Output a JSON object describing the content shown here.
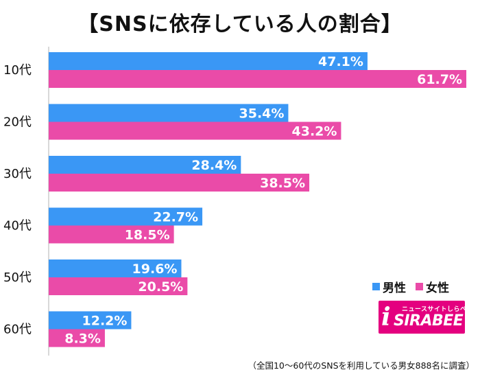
{
  "title": "【SNSに依存している人の割合】",
  "legend": [
    {
      "label": "男性",
      "color": "#3a97f5"
    },
    {
      "label": "女性",
      "color": "#ea4ba8"
    }
  ],
  "logo": {
    "tagline": "ニュースサイトしらべぇ",
    "mark": "i",
    "name": "SIRABEE"
  },
  "note": "（全国10〜60代のSNSを利用している男女888名に調査）",
  "chart_data": {
    "type": "bar",
    "orientation": "horizontal",
    "title": "【SNSに依存している人の割合】",
    "categories": [
      "10代",
      "20代",
      "30代",
      "40代",
      "50代",
      "60代"
    ],
    "series": [
      {
        "name": "男性",
        "values": [
          47.1,
          35.4,
          28.4,
          22.7,
          19.6,
          12.2
        ],
        "labels": [
          "47.1%",
          "35.4%",
          "28.4%",
          "22.7%",
          "19.6%",
          "12.2%"
        ],
        "color": "#3a97f5"
      },
      {
        "name": "女性",
        "values": [
          61.7,
          43.2,
          38.5,
          18.5,
          20.5,
          8.3
        ],
        "labels": [
          "61.7%",
          "43.2%",
          "38.5%",
          "18.5%",
          "20.5%",
          "8.3%"
        ],
        "color": "#ea4ba8"
      }
    ],
    "xlim": [
      0,
      62
    ],
    "grid": false,
    "legend_position": "bottom-right"
  }
}
